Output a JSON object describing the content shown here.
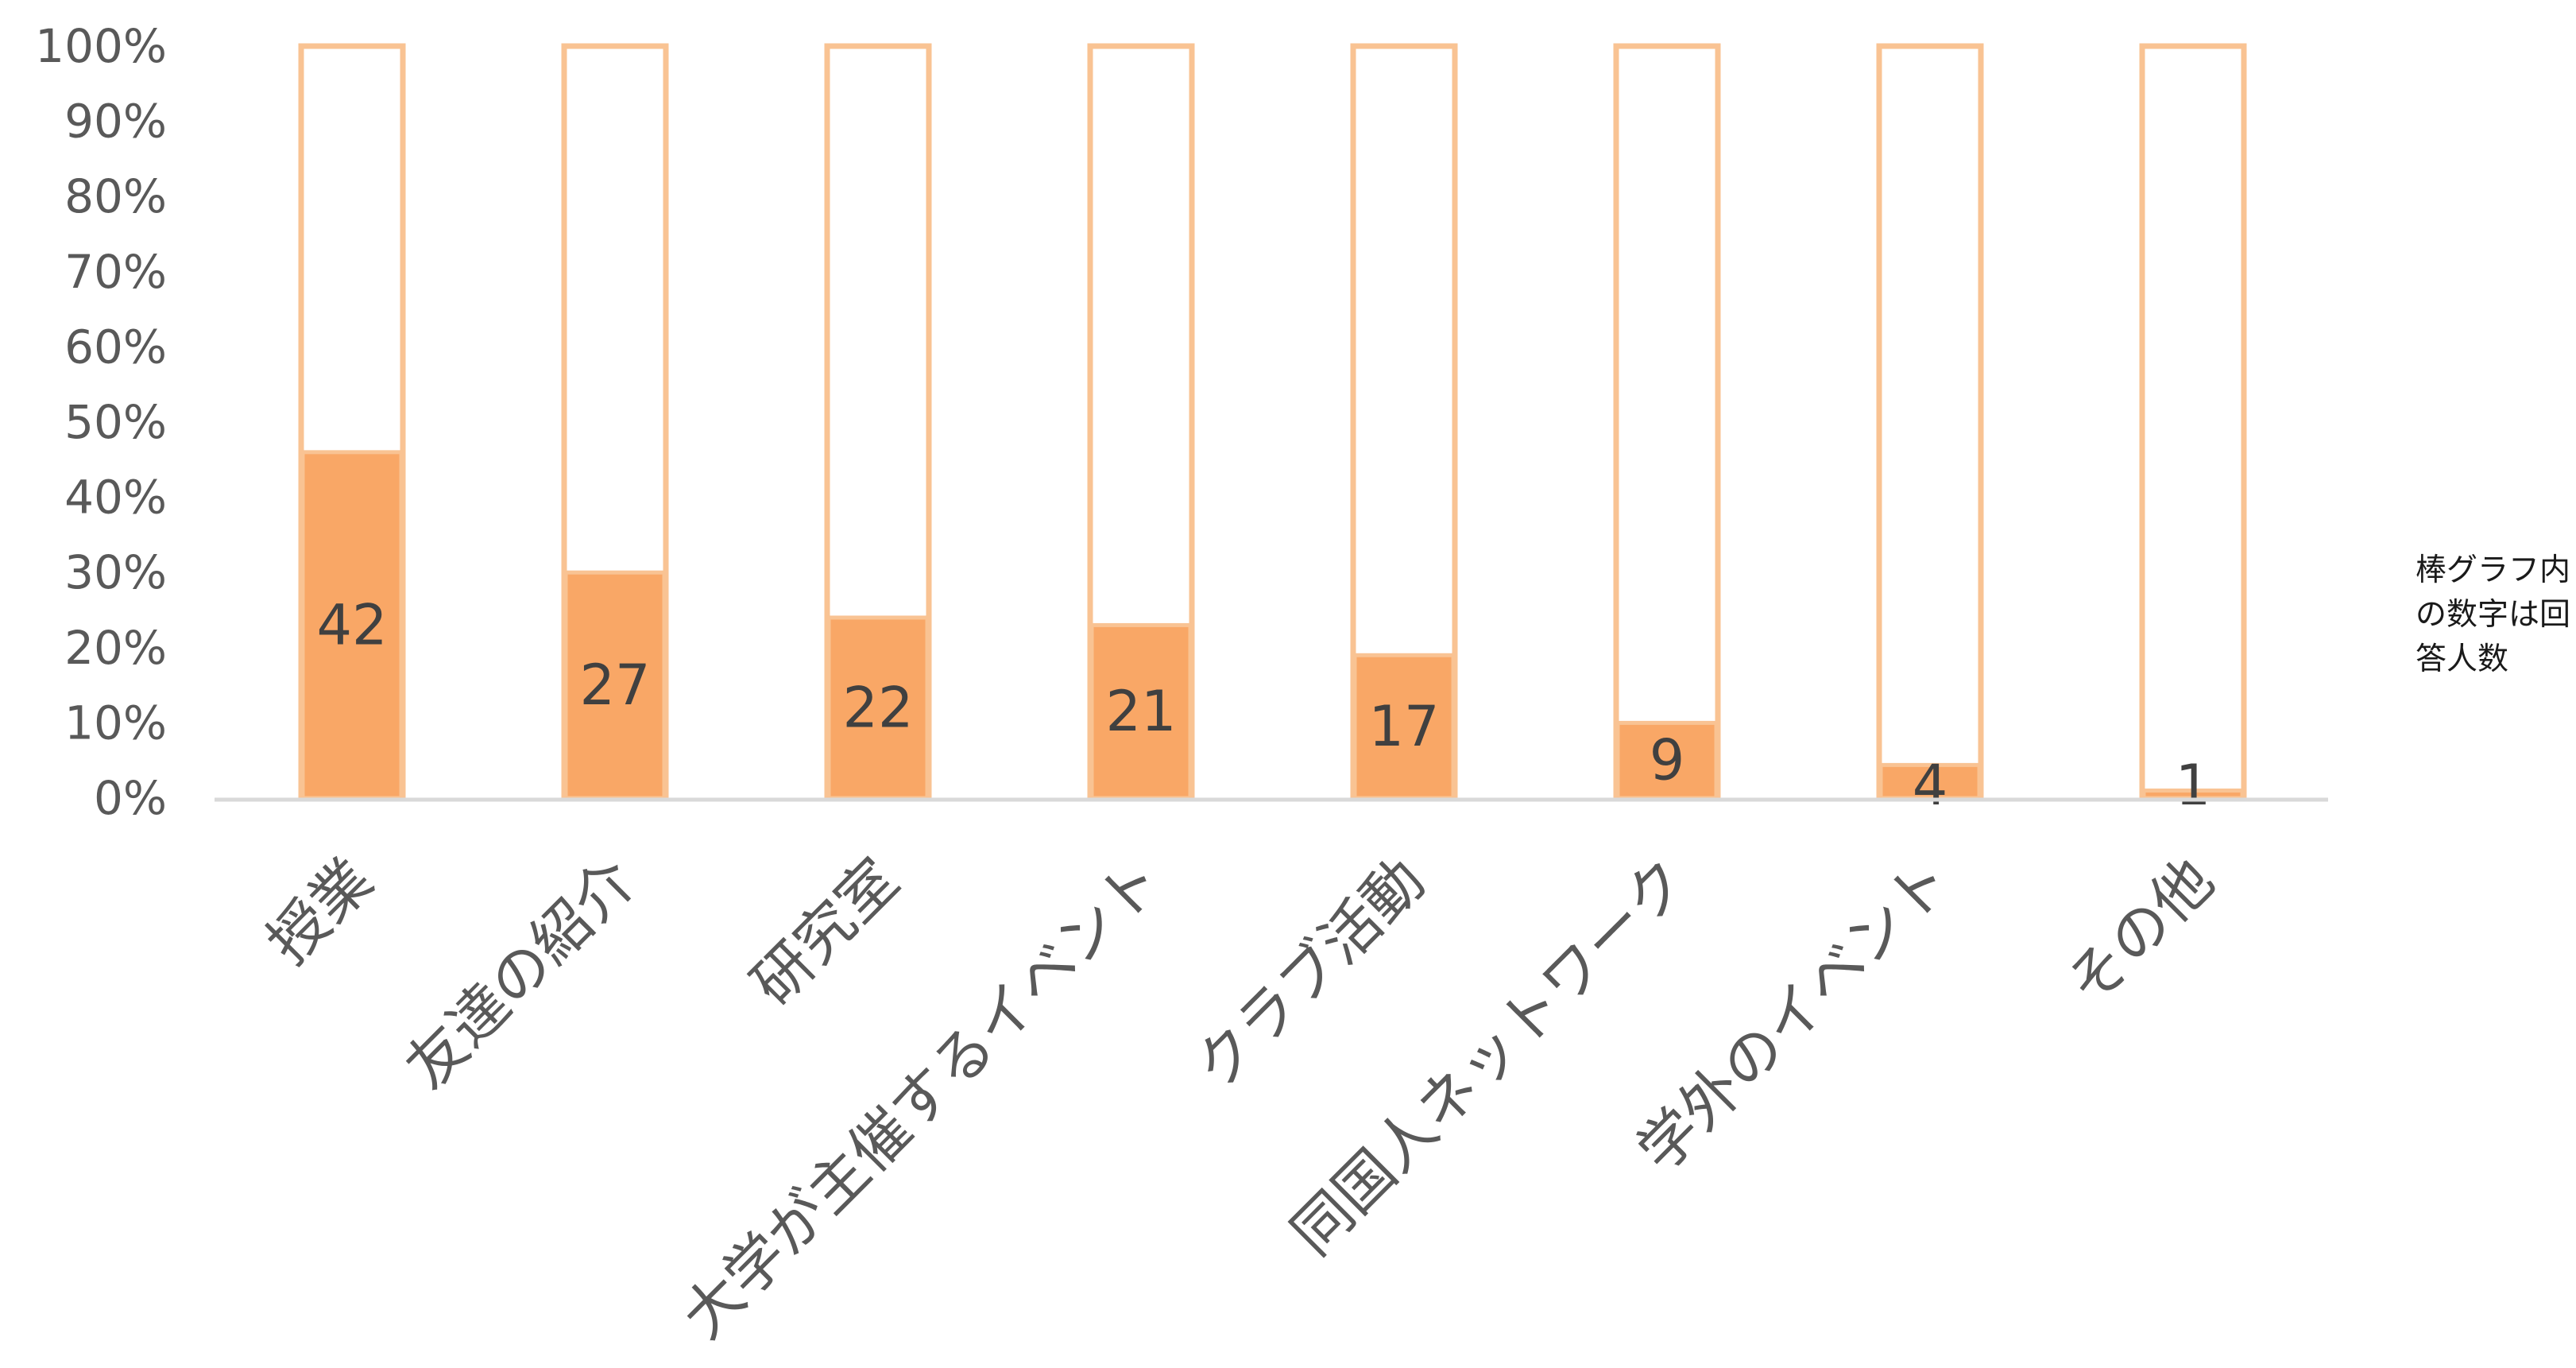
{
  "note": "棒グラフ内の数字は回答人数",
  "chart_data": {
    "type": "bar",
    "stacked": true,
    "categories": [
      "授業",
      "友達の紹介",
      "研究室",
      "大学が主催するイベント",
      "クラブ活動",
      "同国人ネットワーク",
      "学外のイベント",
      "その他"
    ],
    "counts": [
      42,
      27,
      22,
      21,
      17,
      9,
      4,
      1
    ],
    "percent": [
      46,
      30,
      24,
      23,
      19,
      10,
      4.4,
      1
    ],
    "yticks": [
      "0%",
      "10%",
      "20%",
      "30%",
      "40%",
      "50%",
      "60%",
      "70%",
      "80%",
      "90%",
      "100%"
    ],
    "ylim": [
      0,
      100
    ],
    "grid": false,
    "legend": "none",
    "colors": {
      "fill": "#f9a766",
      "outline": "#f9c393",
      "axis": "#d9d9d9"
    }
  }
}
